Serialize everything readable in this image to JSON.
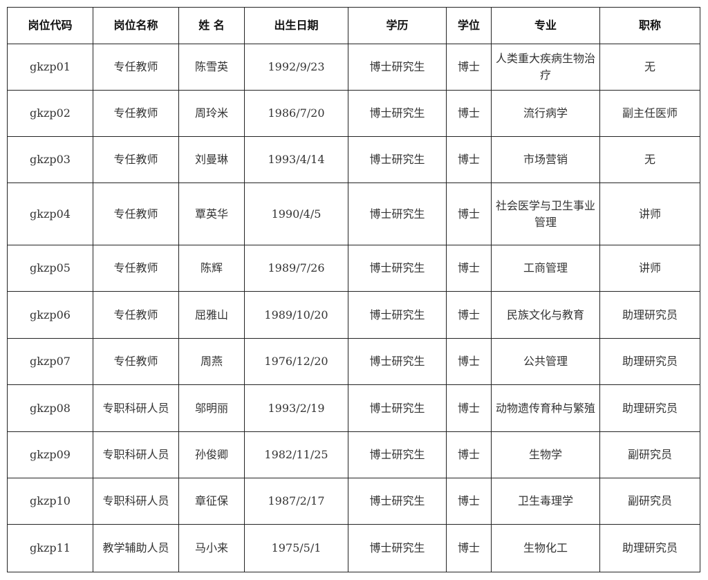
{
  "headers": [
    "岗位代码",
    "岗位名称",
    "姓 名",
    "出生日期",
    "学历",
    "学位",
    "专业",
    "职称"
  ],
  "rows": [
    [
      "gkzp01",
      "专任教师",
      "陈雪英",
      "1992/9/23",
      "博士研究生",
      "博士",
      "人类重大疾病生物治疗",
      "无"
    ],
    [
      "gkzp02",
      "专任教师",
      "周玲米",
      "1986/7/20",
      "博士研究生",
      "博士",
      "流行病学",
      "副主任医师"
    ],
    [
      "gkzp03",
      "专任教师",
      "刘曼琳",
      "1993/4/14",
      "博士研究生",
      "博士",
      "市场营销",
      "无"
    ],
    [
      "gkzp04",
      "专任教师",
      "覃英华",
      "1990/4/5",
      "博士研究生",
      "博士",
      "社会医学与卫生事业管理",
      "讲师"
    ],
    [
      "gkzp05",
      "专任教师",
      "陈辉",
      "1989/7/26",
      "博士研究生",
      "博士",
      "工商管理",
      "讲师"
    ],
    [
      "gkzp06",
      "专任教师",
      "屈雅山",
      "1989/10/20",
      "博士研究生",
      "博士",
      "民族文化与教育",
      "助理研究员"
    ],
    [
      "gkzp07",
      "专任教师",
      "周燕",
      "1976/12/20",
      "博士研究生",
      "博士",
      "公共管理",
      "助理研究员"
    ],
    [
      "gkzp08",
      "专职科研人员",
      "邬明丽",
      "1993/2/19",
      "博士研究生",
      "博士",
      "动物遗传育种与繁殖",
      "助理研究员"
    ],
    [
      "gkzp09",
      "专职科研人员",
      "孙俊卿",
      "1982/11/25",
      "博士研究生",
      "博士",
      "生物学",
      "副研究员"
    ],
    [
      "gkzp10",
      "专职科研人员",
      "章征保",
      "1987/2/17",
      "博士研究生",
      "博士",
      "卫生毒理学",
      "副研究员"
    ],
    [
      "gkzp11",
      "教学辅助人员",
      "马小来",
      "1975/5/1",
      "博士研究生",
      "博士",
      "生物化工",
      "助理研究员"
    ]
  ]
}
